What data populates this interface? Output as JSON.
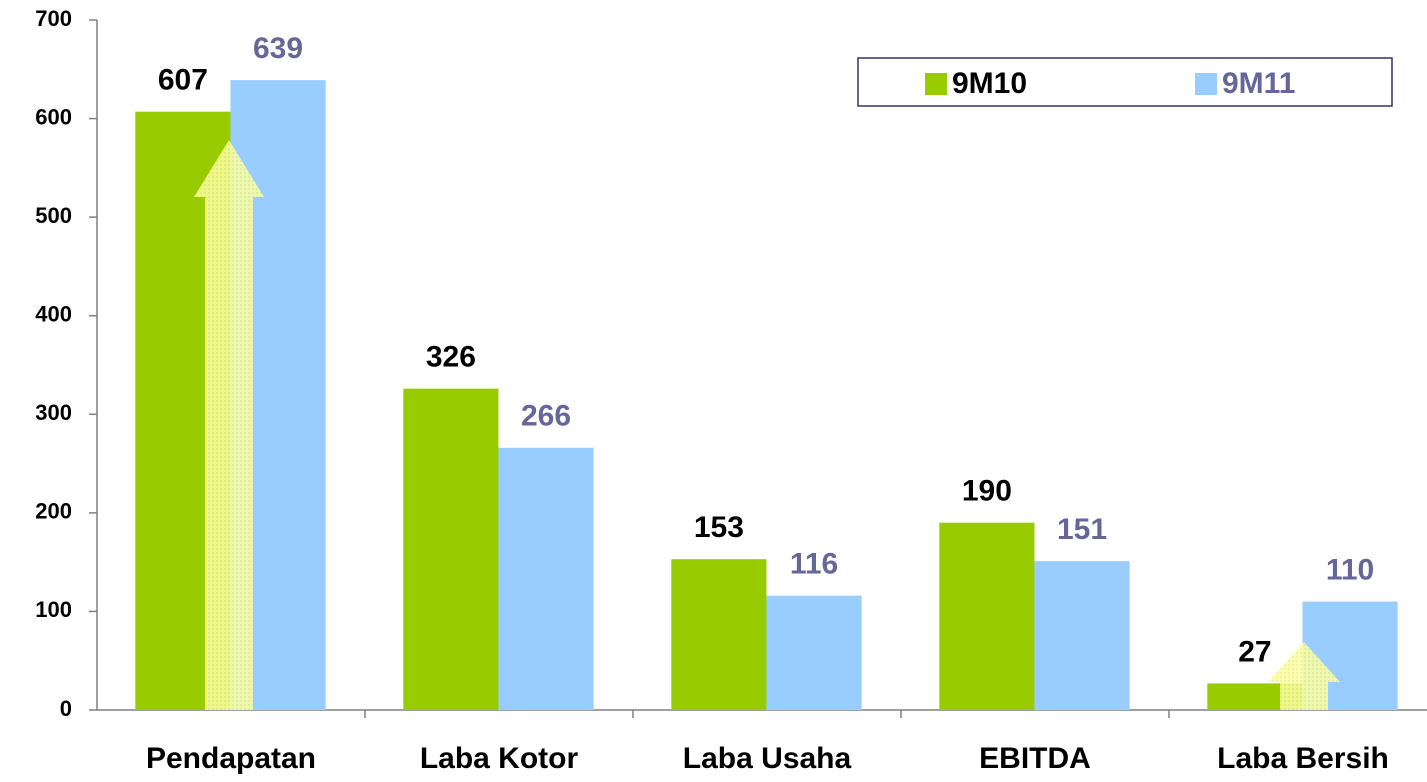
{
  "chart_data": {
    "type": "bar",
    "categories": [
      "Pendapatan",
      "Laba Kotor",
      "Laba Usaha",
      "EBITDA",
      "Laba Bersih"
    ],
    "series": [
      {
        "name": "9M10",
        "color": "#99cc00",
        "label_color": "#000000",
        "values": [
          607,
          326,
          153,
          190,
          27
        ]
      },
      {
        "name": "9M11",
        "color": "#99ccff",
        "label_color": "#666699",
        "values": [
          639,
          266,
          116,
          151,
          110
        ]
      }
    ],
    "ylim": [
      0,
      700
    ],
    "yticks": [
      0,
      100,
      200,
      300,
      400,
      500,
      600,
      700
    ],
    "grid": false,
    "legend": "upper right"
  }
}
